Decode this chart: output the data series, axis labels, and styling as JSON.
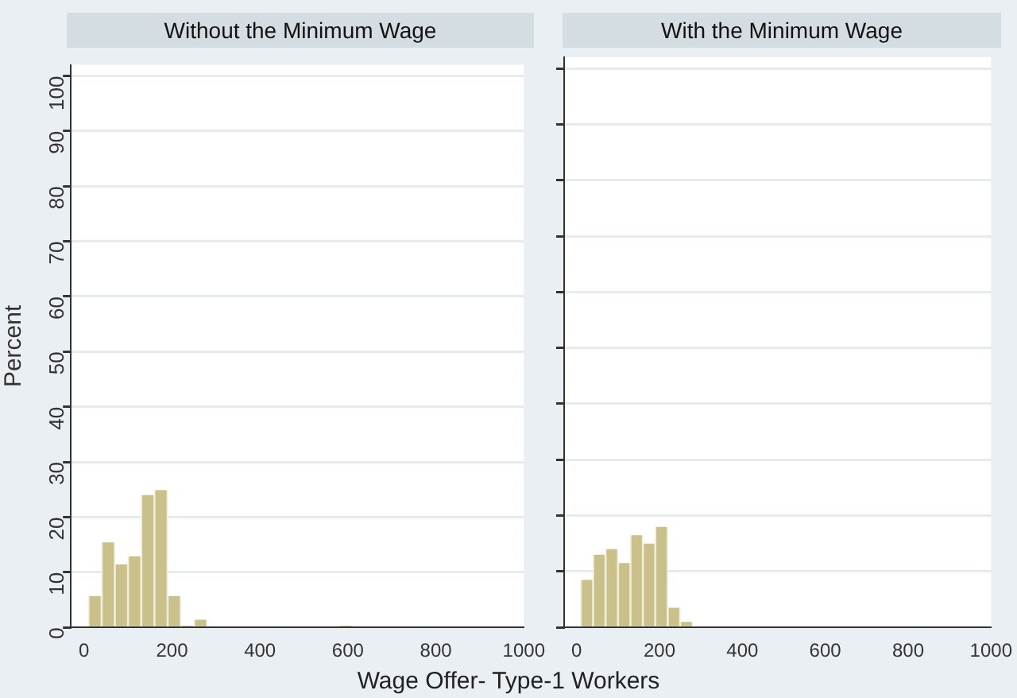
{
  "chart_data": [
    {
      "type": "histogram",
      "title": "Without the Minimum Wage",
      "xlabel": "Wage Offer- Type-1 Workers",
      "ylabel": "Percent",
      "color": "#c9c08a",
      "bins": [
        10,
        40,
        70,
        100,
        130,
        160,
        190,
        220,
        250,
        280,
        310,
        340,
        370,
        400,
        430,
        460,
        490,
        520,
        550,
        580,
        610
      ],
      "values": [
        5.7,
        15.4,
        11.4,
        12.9,
        24,
        24.9,
        5.7,
        0.3,
        1.4,
        0,
        0,
        0,
        0,
        0,
        0,
        0,
        0,
        0,
        0,
        0.3
      ],
      "xlim": [
        -30,
        1000
      ],
      "xticks": [
        0,
        200,
        400,
        600,
        800,
        1000
      ],
      "ylim": [
        0,
        102
      ],
      "yticks": [
        0,
        10,
        20,
        30,
        40,
        50,
        60,
        70,
        80,
        90,
        100
      ],
      "grid": "y"
    },
    {
      "type": "histogram",
      "title": "With the Minimum Wage",
      "color": "#c9c08a",
      "bins": [
        10,
        40,
        70,
        100,
        130,
        160,
        190,
        220,
        250,
        280
      ],
      "values": [
        8.5,
        13,
        14,
        11.5,
        16.5,
        15,
        18,
        3.5,
        1
      ],
      "xlim": [
        -30,
        1000
      ],
      "xticks": [
        0,
        200,
        400,
        600,
        800,
        1000
      ],
      "ylim": [
        0,
        102
      ],
      "yticks": [
        0,
        10,
        20,
        30,
        40,
        50,
        60,
        70,
        80,
        90,
        100
      ],
      "grid": "y",
      "tick_labels": "x"
    }
  ]
}
